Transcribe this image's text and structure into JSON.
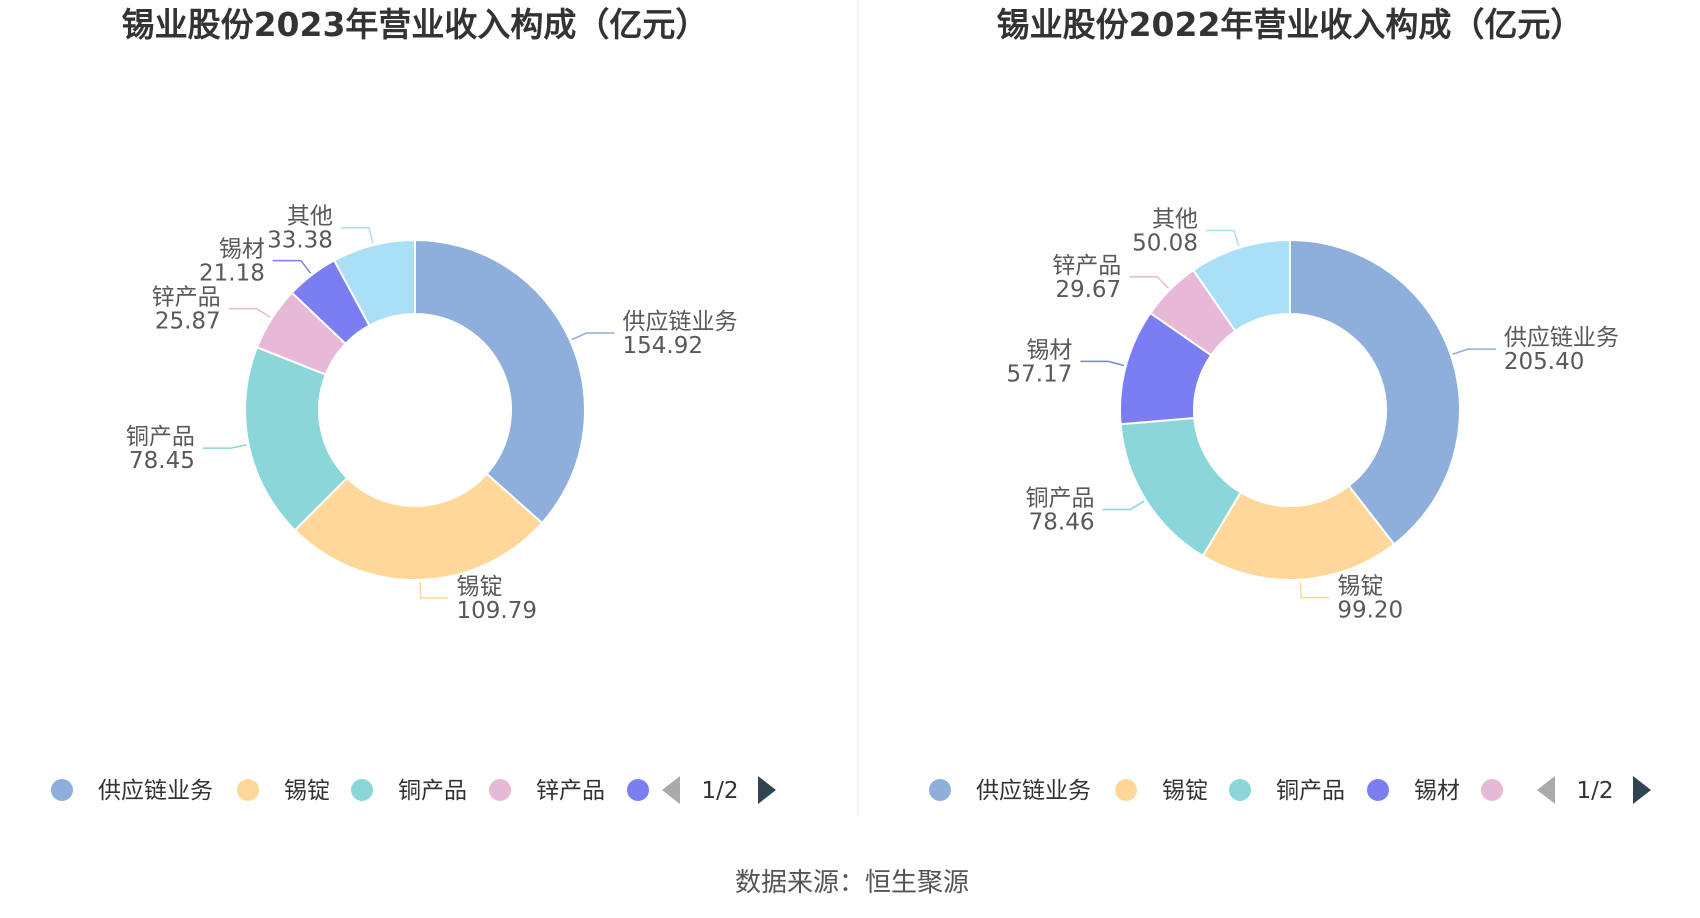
{
  "chart_data": [
    {
      "type": "pie",
      "title": "锡业股份2023年营业收入构成（亿元）",
      "categories": [
        "供应链业务",
        "锡锭",
        "铜产品",
        "锌产品",
        "锡材",
        "其他"
      ],
      "values": [
        154.92,
        109.79,
        78.45,
        25.87,
        21.18,
        33.38
      ],
      "value_labels": [
        "154.92",
        "109.79",
        "78.45",
        "25.87",
        "21.18",
        "33.38"
      ],
      "colors": [
        "#8eaedb",
        "#ffd899",
        "#8ad6d8",
        "#e8b8d8",
        "#7b7ef2",
        "#aadff8"
      ],
      "legend": {
        "placement": "bottom",
        "visible_items": [
          "供应链业务",
          "锡锭",
          "铜产品",
          "锌产品"
        ],
        "page": "1/2"
      }
    },
    {
      "type": "pie",
      "title": "锡业股份2022年营业收入构成（亿元）",
      "categories": [
        "供应链业务",
        "锡锭",
        "铜产品",
        "锡材",
        "锌产品",
        "其他"
      ],
      "values": [
        205.4,
        99.2,
        78.46,
        57.17,
        29.67,
        50.08
      ],
      "value_labels": [
        "205.40",
        "99.20",
        "78.46",
        "57.17",
        "29.67",
        "50.08"
      ],
      "colors": [
        "#8eaedb",
        "#ffd899",
        "#8ad6d8",
        "#7b7ef2",
        "#e8b8d8",
        "#aadff8"
      ],
      "legend": {
        "placement": "bottom",
        "visible_items": [
          "供应链业务",
          "锡锭",
          "铜产品",
          "锡材"
        ],
        "page": "1/2"
      }
    }
  ],
  "source": "数据来源：恒生聚源",
  "colors": {
    "legend_nav_active": "#2f4554",
    "legend_nav_inactive": "#aaaaaa",
    "divider": "#eeeeee"
  }
}
